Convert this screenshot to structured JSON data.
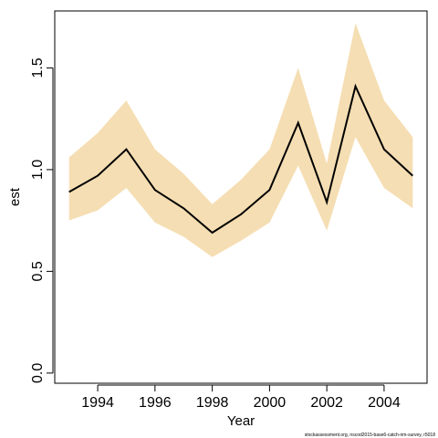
{
  "chart_data": {
    "type": "line",
    "xlabel": "Year",
    "ylabel": "est",
    "xlim": [
      1992.5,
      2005.5
    ],
    "ylim": [
      -0.05,
      1.78
    ],
    "x_ticks": [
      1994,
      1996,
      1998,
      2000,
      2002,
      2004
    ],
    "x_tick_labels": [
      "1994",
      "1996",
      "1998",
      "2000",
      "2002",
      "2004"
    ],
    "y_ticks": [
      0.0,
      0.5,
      1.0,
      1.5
    ],
    "y_tick_labels": [
      "0.0",
      "0.5",
      "1.0",
      "1.5"
    ],
    "x": [
      1993,
      1994,
      1995,
      1996,
      1997,
      1998,
      1999,
      2000,
      2001,
      2002,
      2003,
      2004,
      2005
    ],
    "series": [
      {
        "values": [
          0.89,
          0.97,
          1.1,
          0.9,
          0.81,
          0.69,
          0.78,
          0.9,
          1.23,
          0.84,
          1.41,
          1.1,
          0.97
        ],
        "lower": [
          0.75,
          0.8,
          0.91,
          0.74,
          0.67,
          0.57,
          0.65,
          0.74,
          1.02,
          0.7,
          1.16,
          0.91,
          0.81
        ],
        "upper": [
          1.06,
          1.18,
          1.34,
          1.1,
          0.98,
          0.83,
          0.95,
          1.1,
          1.5,
          1.03,
          1.72,
          1.34,
          1.16
        ]
      }
    ],
    "grid": false,
    "legend": "none",
    "colors": {
      "band": "#F5DEB3",
      "line": "#000000",
      "axis": "#000000"
    }
  },
  "credit": "stockassessment.org, nscod2015-base6-catch-nm-survey, r5018"
}
